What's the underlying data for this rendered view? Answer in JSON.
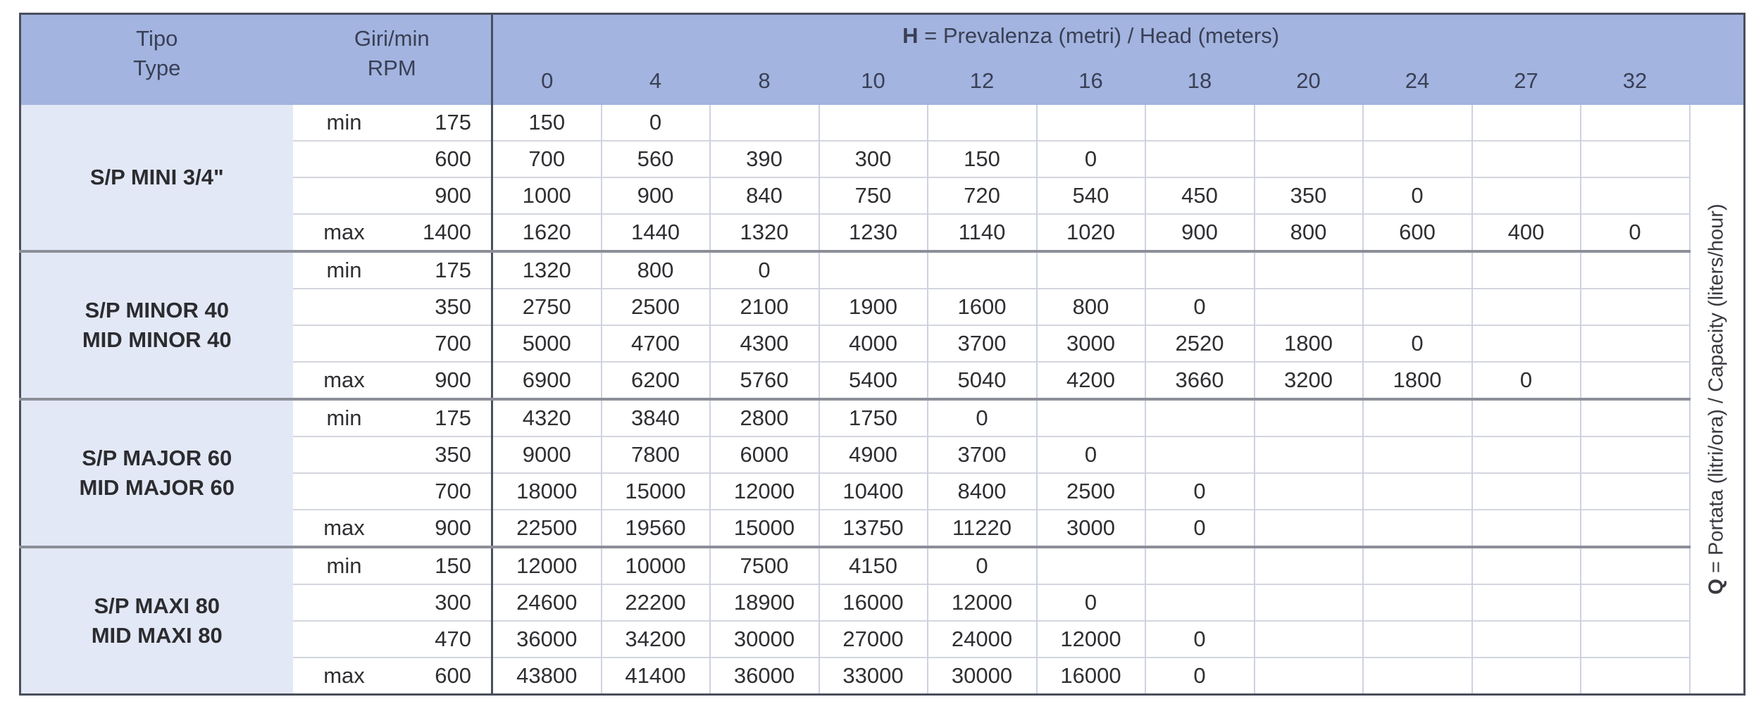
{
  "header": {
    "type_it": "Tipo",
    "type_en": "Type",
    "rpm_it": "Giri/min",
    "rpm_en": "RPM",
    "head_symbol": "H",
    "head_title": " = Prevalenza (metri) / Head (meters)",
    "heads": [
      "0",
      "4",
      "8",
      "10",
      "12",
      "16",
      "18",
      "20",
      "24",
      "27",
      "32"
    ]
  },
  "side_label": {
    "symbol": "Q",
    "text": " = Portata (litri/ora) / Capacity (liters/hour)"
  },
  "colors": {
    "header_bg": "#a2b4df",
    "type_bg": "#e2e8f5",
    "border": "#4a4f5c"
  },
  "groups": [
    {
      "name_lines": [
        "S/P MINI 3/4\""
      ],
      "rows": [
        {
          "mode": "min",
          "rpm": "175",
          "values": [
            "150",
            "0",
            "",
            "",
            "",
            "",
            "",
            "",
            "",
            "",
            ""
          ]
        },
        {
          "mode": "",
          "rpm": "600",
          "values": [
            "700",
            "560",
            "390",
            "300",
            "150",
            "0",
            "",
            "",
            "",
            "",
            ""
          ]
        },
        {
          "mode": "",
          "rpm": "900",
          "values": [
            "1000",
            "900",
            "840",
            "750",
            "720",
            "540",
            "450",
            "350",
            "0",
            "",
            ""
          ]
        },
        {
          "mode": "max",
          "rpm": "1400",
          "values": [
            "1620",
            "1440",
            "1320",
            "1230",
            "1140",
            "1020",
            "900",
            "800",
            "600",
            "400",
            "0"
          ]
        }
      ]
    },
    {
      "name_lines": [
        "S/P MINOR 40",
        "MID MINOR 40"
      ],
      "rows": [
        {
          "mode": "min",
          "rpm": "175",
          "values": [
            "1320",
            "800",
            "0",
            "",
            "",
            "",
            "",
            "",
            "",
            "",
            ""
          ]
        },
        {
          "mode": "",
          "rpm": "350",
          "values": [
            "2750",
            "2500",
            "2100",
            "1900",
            "1600",
            "800",
            "0",
            "",
            "",
            "",
            ""
          ]
        },
        {
          "mode": "",
          "rpm": "700",
          "values": [
            "5000",
            "4700",
            "4300",
            "4000",
            "3700",
            "3000",
            "2520",
            "1800",
            "0",
            "",
            ""
          ]
        },
        {
          "mode": "max",
          "rpm": "900",
          "values": [
            "6900",
            "6200",
            "5760",
            "5400",
            "5040",
            "4200",
            "3660",
            "3200",
            "1800",
            "0",
            ""
          ]
        }
      ]
    },
    {
      "name_lines": [
        "S/P MAJOR 60",
        "MID MAJOR 60"
      ],
      "rows": [
        {
          "mode": "min",
          "rpm": "175",
          "values": [
            "4320",
            "3840",
            "2800",
            "1750",
            "0",
            "",
            "",
            "",
            "",
            "",
            ""
          ]
        },
        {
          "mode": "",
          "rpm": "350",
          "values": [
            "9000",
            "7800",
            "6000",
            "4900",
            "3700",
            "0",
            "",
            "",
            "",
            "",
            ""
          ]
        },
        {
          "mode": "",
          "rpm": "700",
          "values": [
            "18000",
            "15000",
            "12000",
            "10400",
            "8400",
            "2500",
            "0",
            "",
            "",
            "",
            ""
          ]
        },
        {
          "mode": "max",
          "rpm": "900",
          "values": [
            "22500",
            "19560",
            "15000",
            "13750",
            "11220",
            "3000",
            "0",
            "",
            "",
            "",
            ""
          ]
        }
      ]
    },
    {
      "name_lines": [
        "S/P MAXI 80",
        "MID MAXI 80"
      ],
      "rows": [
        {
          "mode": "min",
          "rpm": "150",
          "values": [
            "12000",
            "10000",
            "7500",
            "4150",
            "0",
            "",
            "",
            "",
            "",
            "",
            ""
          ]
        },
        {
          "mode": "",
          "rpm": "300",
          "values": [
            "24600",
            "22200",
            "18900",
            "16000",
            "12000",
            "0",
            "",
            "",
            "",
            "",
            ""
          ]
        },
        {
          "mode": "",
          "rpm": "470",
          "values": [
            "36000",
            "34200",
            "30000",
            "27000",
            "24000",
            "12000",
            "0",
            "",
            "",
            "",
            ""
          ]
        },
        {
          "mode": "max",
          "rpm": "600",
          "values": [
            "43800",
            "41400",
            "36000",
            "33000",
            "30000",
            "16000",
            "0",
            "",
            "",
            "",
            ""
          ]
        }
      ]
    }
  ]
}
